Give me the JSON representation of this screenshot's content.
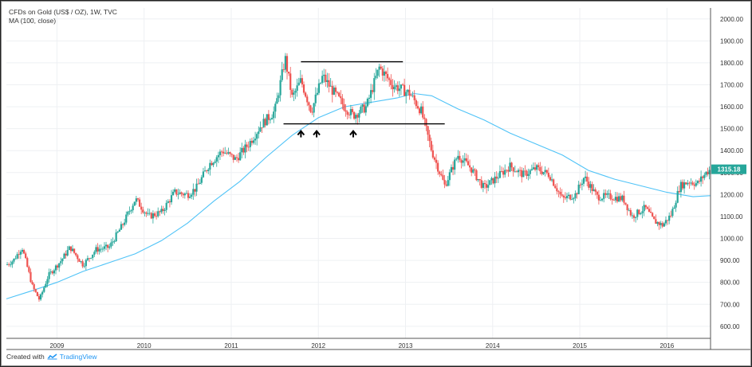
{
  "header": {
    "symbol": "CFDs on Gold (US$ / OZ), 1W, TVC",
    "indicator": "MA (100, close)"
  },
  "footer": {
    "created_with": "Created with",
    "brand": "TradingView"
  },
  "price_label": "1315.18",
  "colors": {
    "up": "#26a69a",
    "down": "#ef5350",
    "ma": "#4fc3f7",
    "grid": "#eef0f3",
    "price_tag": "#26a69a",
    "annotation": "#000000"
  },
  "chart_data": {
    "type": "candlestick",
    "x_ticks": [
      "2009",
      "2010",
      "2011",
      "2012",
      "2013",
      "2014",
      "2015",
      "2016"
    ],
    "y_ticks": [
      "600.00",
      "700.00",
      "800.00",
      "900.00",
      "1000.00",
      "1100.00",
      "1200.00",
      "1300.00",
      "1400.00",
      "1500.00",
      "1600.00",
      "1700.00",
      "1800.00",
      "1900.00",
      "2000.00"
    ],
    "ylim": [
      545,
      2050
    ],
    "xlim": [
      2008.42,
      2016.5
    ],
    "last_price": 1315.18,
    "price_path": [
      [
        2008.42,
        880
      ],
      [
        2008.5,
        900
      ],
      [
        2008.6,
        960
      ],
      [
        2008.72,
        780
      ],
      [
        2008.8,
        720
      ],
      [
        2008.9,
        830
      ],
      [
        2009.05,
        900
      ],
      [
        2009.15,
        960
      ],
      [
        2009.3,
        880
      ],
      [
        2009.45,
        950
      ],
      [
        2009.6,
        960
      ],
      [
        2009.75,
        1060
      ],
      [
        2009.9,
        1180
      ],
      [
        2010.05,
        1100
      ],
      [
        2010.2,
        1120
      ],
      [
        2010.35,
        1210
      ],
      [
        2010.5,
        1200
      ],
      [
        2010.6,
        1230
      ],
      [
        2010.75,
        1340
      ],
      [
        2010.9,
        1400
      ],
      [
        2011.05,
        1360
      ],
      [
        2011.2,
        1430
      ],
      [
        2011.35,
        1520
      ],
      [
        2011.5,
        1580
      ],
      [
        2011.62,
        1820
      ],
      [
        2011.7,
        1640
      ],
      [
        2011.8,
        1720
      ],
      [
        2011.92,
        1580
      ],
      [
        2012.05,
        1740
      ],
      [
        2012.15,
        1680
      ],
      [
        2012.3,
        1600
      ],
      [
        2012.4,
        1560
      ],
      [
        2012.55,
        1600
      ],
      [
        2012.7,
        1780
      ],
      [
        2012.85,
        1700
      ],
      [
        2012.95,
        1680
      ],
      [
        2013.05,
        1660
      ],
      [
        2013.18,
        1580
      ],
      [
        2013.3,
        1400
      ],
      [
        2013.45,
        1240
      ],
      [
        2013.6,
        1380
      ],
      [
        2013.75,
        1320
      ],
      [
        2013.9,
        1230
      ],
      [
        2014.05,
        1280
      ],
      [
        2014.2,
        1330
      ],
      [
        2014.35,
        1290
      ],
      [
        2014.5,
        1320
      ],
      [
        2014.65,
        1290
      ],
      [
        2014.8,
        1180
      ],
      [
        2014.95,
        1200
      ],
      [
        2015.05,
        1280
      ],
      [
        2015.2,
        1190
      ],
      [
        2015.35,
        1190
      ],
      [
        2015.5,
        1180
      ],
      [
        2015.6,
        1100
      ],
      [
        2015.75,
        1140
      ],
      [
        2015.85,
        1080
      ],
      [
        2015.95,
        1060
      ],
      [
        2016.05,
        1110
      ],
      [
        2016.15,
        1240
      ],
      [
        2016.25,
        1260
      ],
      [
        2016.35,
        1250
      ],
      [
        2016.45,
        1300
      ],
      [
        2016.5,
        1315
      ]
    ],
    "ma_series": [
      [
        2008.42,
        725
      ],
      [
        2008.7,
        760
      ],
      [
        2009.0,
        800
      ],
      [
        2009.3,
        850
      ],
      [
        2009.6,
        890
      ],
      [
        2009.9,
        930
      ],
      [
        2010.2,
        990
      ],
      [
        2010.5,
        1070
      ],
      [
        2010.8,
        1170
      ],
      [
        2011.1,
        1260
      ],
      [
        2011.4,
        1370
      ],
      [
        2011.7,
        1470
      ],
      [
        2012.0,
        1550
      ],
      [
        2012.3,
        1600
      ],
      [
        2012.6,
        1620
      ],
      [
        2012.9,
        1640
      ],
      [
        2013.1,
        1660
      ],
      [
        2013.3,
        1650
      ],
      [
        2013.6,
        1590
      ],
      [
        2013.9,
        1540
      ],
      [
        2014.2,
        1480
      ],
      [
        2014.5,
        1430
      ],
      [
        2014.8,
        1380
      ],
      [
        2015.1,
        1310
      ],
      [
        2015.4,
        1270
      ],
      [
        2015.7,
        1240
      ],
      [
        2016.0,
        1210
      ],
      [
        2016.3,
        1190
      ],
      [
        2016.5,
        1195
      ]
    ],
    "annotations": {
      "resistance": {
        "x1": 2011.8,
        "x2": 2012.97,
        "y": 1805
      },
      "support": {
        "x1": 2011.6,
        "x2": 2013.45,
        "y": 1522
      },
      "arrows": [
        {
          "x": 2011.8,
          "y": 1475
        },
        {
          "x": 2011.98,
          "y": 1475
        },
        {
          "x": 2012.4,
          "y": 1475
        }
      ]
    }
  }
}
